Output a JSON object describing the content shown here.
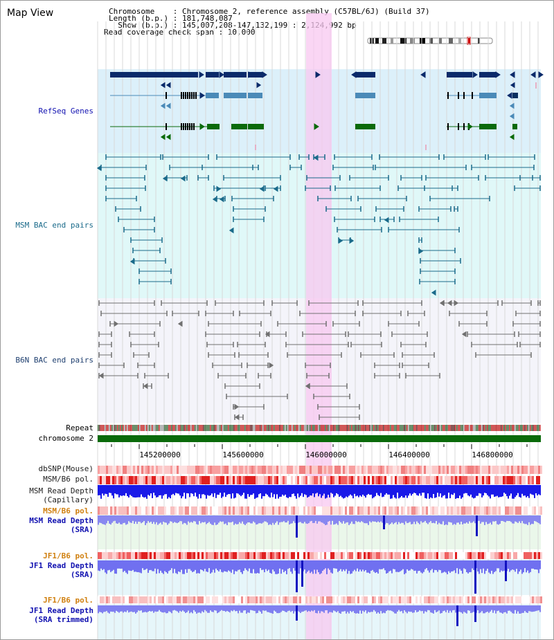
{
  "map_title": "Map View",
  "header": {
    "line1": "Chromosome    : Chromosome 2, reference assembly (C57BL/6J) (Build 37)",
    "line2": "Length (b.p.) : 181,748,087",
    "line3": "  Show (b.p.) : 145,007,208-147,132,199 : 2,124,992 bp",
    "line4": "Read coverage check span : 10,000"
  },
  "tracks": {
    "refseq": "RefSeq Genes",
    "msm_bac": "MSM BAC end pairs",
    "b6n_bac": "B6N BAC end pairs",
    "repeat": "Repeat",
    "chromosome": "chromosome 2",
    "dbsnp": "dbSNP(Mouse)",
    "msm_b6_pol_1": "MSM/B6 pol.",
    "msm_depth_cap_1": "MSM Read Depth",
    "msm_depth_cap_2": "(Capillary)",
    "msm_b6_pol_2": "MSM/B6 pol.",
    "msm_depth_sra_1": "MSM Read Depth",
    "msm_depth_sra_2": "(SRA)",
    "jf1_b6_pol_1": "JF1/B6 pol.",
    "jf1_depth_sra_1": "JF1 Read Depth",
    "jf1_depth_sra_2": "(SRA)",
    "jf1_b6_pol_2": "JF1/B6 pol.",
    "jf1_depth_trim_1": "JF1 Read Depth",
    "jf1_depth_trim_2": "(SRA trimmed)"
  },
  "axis": {
    "ticks": [
      "145200000",
      "145600000",
      "146000000",
      "146400000",
      "146800000"
    ]
  },
  "colors": {
    "refseq_bg": "#dcf0fa",
    "msm_bg": "#e0f8f8",
    "b6n_bg": "#f4f4fa",
    "highlight": "#f8c8f0",
    "gene_navy": "#0a2a6a",
    "gene_steel": "#4a8ab8",
    "gene_green": "#0a6a0a",
    "msm_line": "#1a6a8a",
    "b6n_line": "#707070",
    "chrom_green": "#0a6a0a",
    "label_blue": "#1010b0",
    "label_orange": "#d08010",
    "label_navy": "#204070"
  }
}
